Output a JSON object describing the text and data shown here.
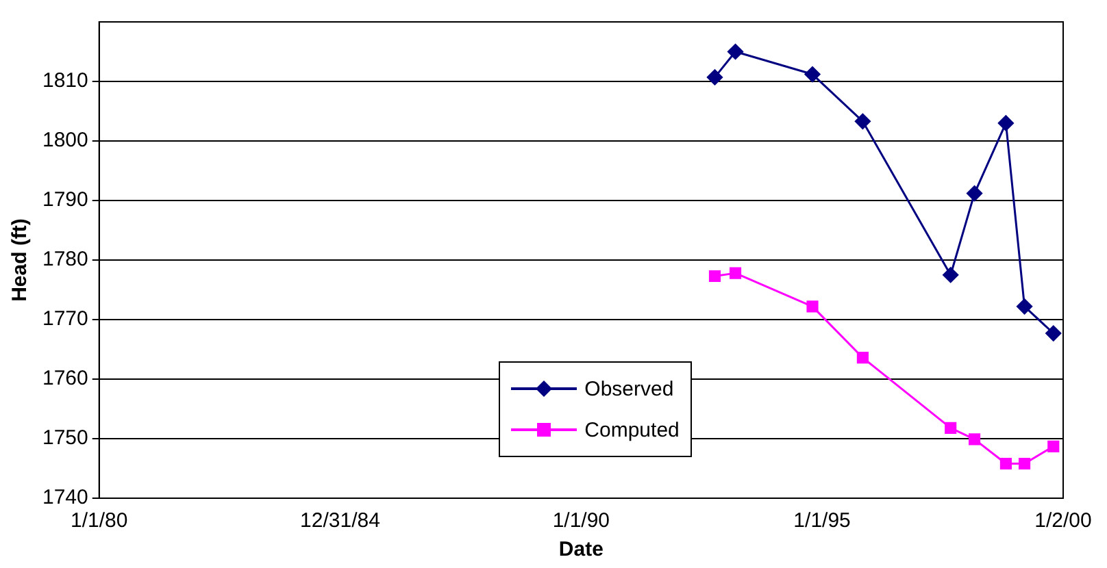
{
  "chart_data": {
    "type": "line",
    "xlabel": "Date",
    "ylabel": "Head (ft)",
    "xlim": [
      "1980-01-01",
      "2000-01-02"
    ],
    "xticks": [
      {
        "value": "1980-01-01",
        "label": "1/1/80"
      },
      {
        "value": "1984-12-31",
        "label": "12/31/84"
      },
      {
        "value": "1990-01-01",
        "label": "1/1/90"
      },
      {
        "value": "1995-01-01",
        "label": "1/1/95"
      },
      {
        "value": "2000-01-02",
        "label": "1/2/00"
      }
    ],
    "ylim": [
      1740,
      1820
    ],
    "yticks": [
      1740,
      1750,
      1760,
      1770,
      1780,
      1790,
      1800,
      1810
    ],
    "grid": "y",
    "legend": "bottom",
    "line_style": "solid",
    "x": [
      "1992-10-10",
      "1993-03-15",
      "1994-10-20",
      "1995-11-05",
      "1997-09-01",
      "1998-03-01",
      "1998-10-25",
      "1999-03-15",
      "1999-10-20"
    ],
    "series": [
      {
        "name": "Observed",
        "color": "#000080",
        "marker": "diamond",
        "values": [
          1810.7,
          1815,
          1811.2,
          1803.3,
          1777.5,
          1791.2,
          1803,
          1772.2,
          1767.7
        ]
      },
      {
        "name": "Computed",
        "color": "#ff00ff",
        "marker": "square",
        "values": [
          1777.3,
          1777.8,
          1772.2,
          1763.6,
          1751.8,
          1749.9,
          1745.8,
          1745.8,
          1748.7
        ]
      }
    ]
  }
}
